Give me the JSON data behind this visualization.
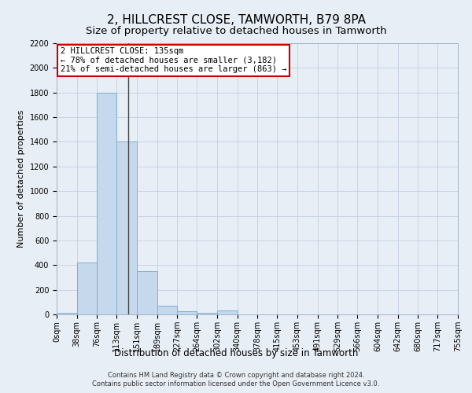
{
  "title": "2, HILLCREST CLOSE, TAMWORTH, B79 8PA",
  "subtitle": "Size of property relative to detached houses in Tamworth",
  "xlabel": "Distribution of detached houses by size in Tamworth",
  "ylabel": "Number of detached properties",
  "footnote1": "Contains HM Land Registry data © Crown copyright and database right 2024.",
  "footnote2": "Contains public sector information licensed under the Open Government Licence v3.0.",
  "bar_edges": [
    0,
    38,
    76,
    113,
    151,
    189,
    227,
    264,
    302,
    340,
    378,
    415,
    453,
    491,
    529,
    566,
    604,
    642,
    680,
    717,
    755
  ],
  "bar_heights": [
    10,
    420,
    1800,
    1400,
    350,
    70,
    25,
    15,
    30,
    0,
    0,
    0,
    0,
    0,
    0,
    0,
    0,
    0,
    0,
    0
  ],
  "bar_color": "#c6d9ec",
  "bar_edge_color": "#7aafd4",
  "property_size": 135,
  "vline_color": "#444444",
  "annotation_text": "2 HILLCREST CLOSE: 135sqm\n← 78% of detached houses are smaller (3,182)\n21% of semi-detached houses are larger (863) →",
  "annotation_box_edgecolor": "#cc0000",
  "annotation_bg": "#ffffff",
  "ylim": [
    0,
    2200
  ],
  "yticks": [
    0,
    200,
    400,
    600,
    800,
    1000,
    1200,
    1400,
    1600,
    1800,
    2000,
    2200
  ],
  "grid_color": "#c8d4e4",
  "background_color": "#e8eef6",
  "title_fontsize": 11,
  "subtitle_fontsize": 9.5,
  "xlabel_fontsize": 8.5,
  "ylabel_fontsize": 8,
  "tick_fontsize": 7,
  "annotation_fontsize": 7.5,
  "footnote_fontsize": 6
}
